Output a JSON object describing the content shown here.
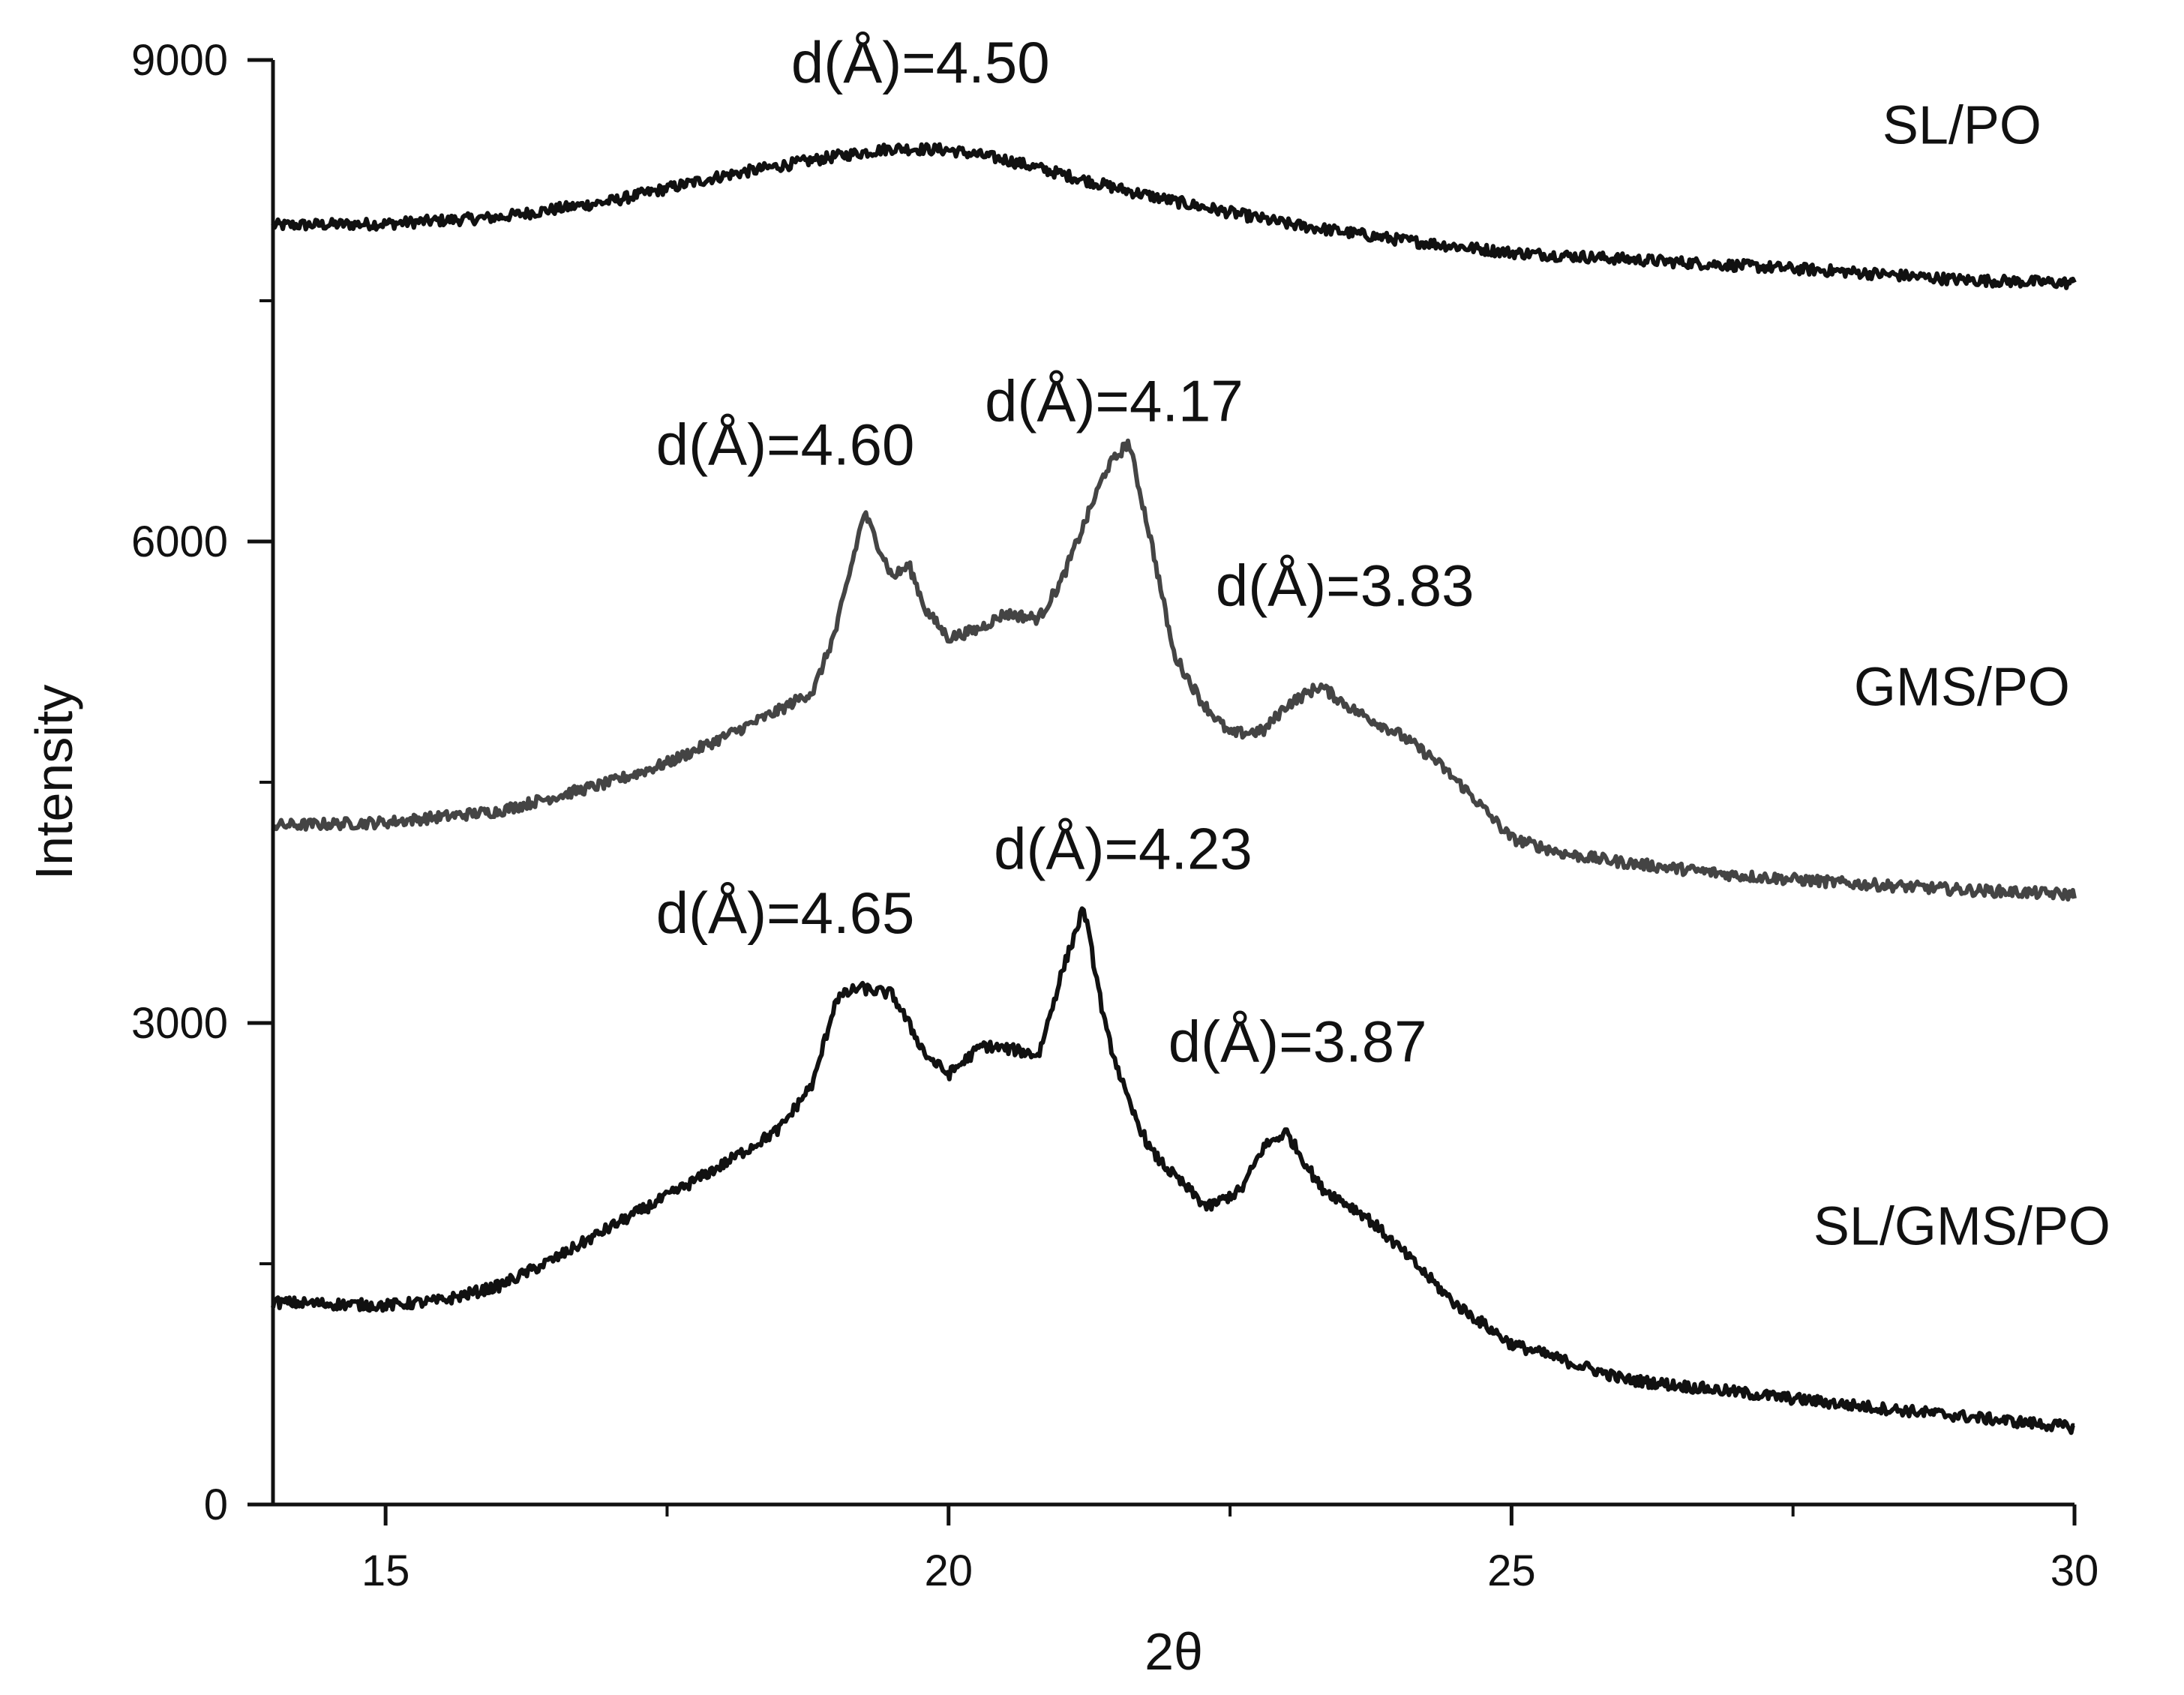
{
  "chart_data": {
    "type": "line",
    "title": "",
    "xlabel": "2θ",
    "ylabel": "Intensity",
    "xlim": [
      14,
      30
    ],
    "ylim": [
      0,
      9000
    ],
    "x_ticks": [
      15,
      20,
      25,
      30
    ],
    "x_tick_labels": [
      "15",
      "20",
      "25",
      "30"
    ],
    "x_minor_ticks": [
      17.5,
      22.5,
      27.5
    ],
    "y_ticks": [
      0,
      3000,
      6000,
      9000
    ],
    "y_tick_labels": [
      "0",
      "3000",
      "6000",
      "9000"
    ],
    "y_minor_ticks": [
      1500,
      4500,
      7500
    ],
    "grid": false,
    "legend": "none",
    "series": [
      {
        "name": "SL/PO",
        "color": "#111111",
        "x": [
          14,
          15,
          16,
          17,
          18,
          19,
          19.5,
          20,
          20.5,
          21,
          21.5,
          22,
          23,
          24,
          25,
          26,
          27,
          28,
          29,
          30
        ],
        "y": [
          7970,
          7980,
          8020,
          8120,
          8280,
          8400,
          8450,
          8440,
          8380,
          8290,
          8200,
          8120,
          7980,
          7880,
          7800,
          7760,
          7720,
          7680,
          7630,
          7610
        ]
      },
      {
        "name": "GMS/PO",
        "color": "#444444",
        "x": [
          14,
          15,
          16,
          17,
          17.5,
          18,
          18.5,
          18.8,
          19,
          19.25,
          19.5,
          19.65,
          19.8,
          20,
          20.25,
          20.5,
          20.8,
          21,
          21.2,
          21.4,
          21.6,
          21.8,
          22,
          22.25,
          22.5,
          22.8,
          23,
          23.3,
          23.6,
          24,
          24.3,
          24.6,
          25,
          25.5,
          26,
          27,
          28,
          29,
          30
        ],
        "y": [
          4230,
          4250,
          4320,
          4500,
          4620,
          4780,
          4950,
          5070,
          5450,
          6180,
          5780,
          5850,
          5570,
          5400,
          5450,
          5550,
          5520,
          5750,
          6100,
          6450,
          6620,
          6000,
          5300,
          5000,
          4800,
          4820,
          4980,
          5100,
          4950,
          4800,
          4650,
          4450,
          4150,
          4050,
          4000,
          3920,
          3870,
          3830,
          3800
        ]
      },
      {
        "name": "SL/GMS/PO",
        "color": "#111111",
        "x": [
          14,
          15,
          15.5,
          16,
          16.5,
          17,
          17.5,
          18,
          18.5,
          18.8,
          19,
          19.2,
          19.5,
          19.8,
          20,
          20.3,
          20.6,
          20.8,
          21,
          21.2,
          21.4,
          21.6,
          21.8,
          22,
          22.3,
          22.6,
          22.8,
          23,
          23.3,
          23.7,
          24,
          24.5,
          25,
          26,
          27,
          28,
          29,
          30
        ],
        "y": [
          1260,
          1240,
          1270,
          1360,
          1530,
          1730,
          1920,
          2120,
          2340,
          2630,
          3150,
          3220,
          3180,
          2800,
          2680,
          2860,
          2830,
          2800,
          3300,
          3720,
          2950,
          2500,
          2200,
          2050,
          1850,
          1960,
          2230,
          2320,
          1980,
          1800,
          1600,
          1250,
          1000,
          780,
          700,
          620,
          550,
          480
        ]
      }
    ],
    "series_labels": [
      {
        "text": "SL/PO",
        "x": 29.0,
        "y": 8480
      },
      {
        "text": "GMS/PO",
        "x": 29.0,
        "y": 4980
      },
      {
        "text": "SL/GMS/PO",
        "x": 29.0,
        "y": 1620
      }
    ],
    "annotations": [
      {
        "text": "d(Å)=4.50",
        "x": 19.75,
        "y": 8860
      },
      {
        "text": "d(Å)=4.60",
        "x": 18.55,
        "y": 6480
      },
      {
        "text": "d(Å)=4.17",
        "x": 21.47,
        "y": 6750
      },
      {
        "text": "d(Å)=3.83",
        "x": 23.52,
        "y": 5600
      },
      {
        "text": "d(Å)=4.65",
        "x": 18.55,
        "y": 3560
      },
      {
        "text": "d(Å)=4.23",
        "x": 21.55,
        "y": 3960
      },
      {
        "text": "d(Å)=3.87",
        "x": 23.1,
        "y": 2760
      }
    ]
  }
}
